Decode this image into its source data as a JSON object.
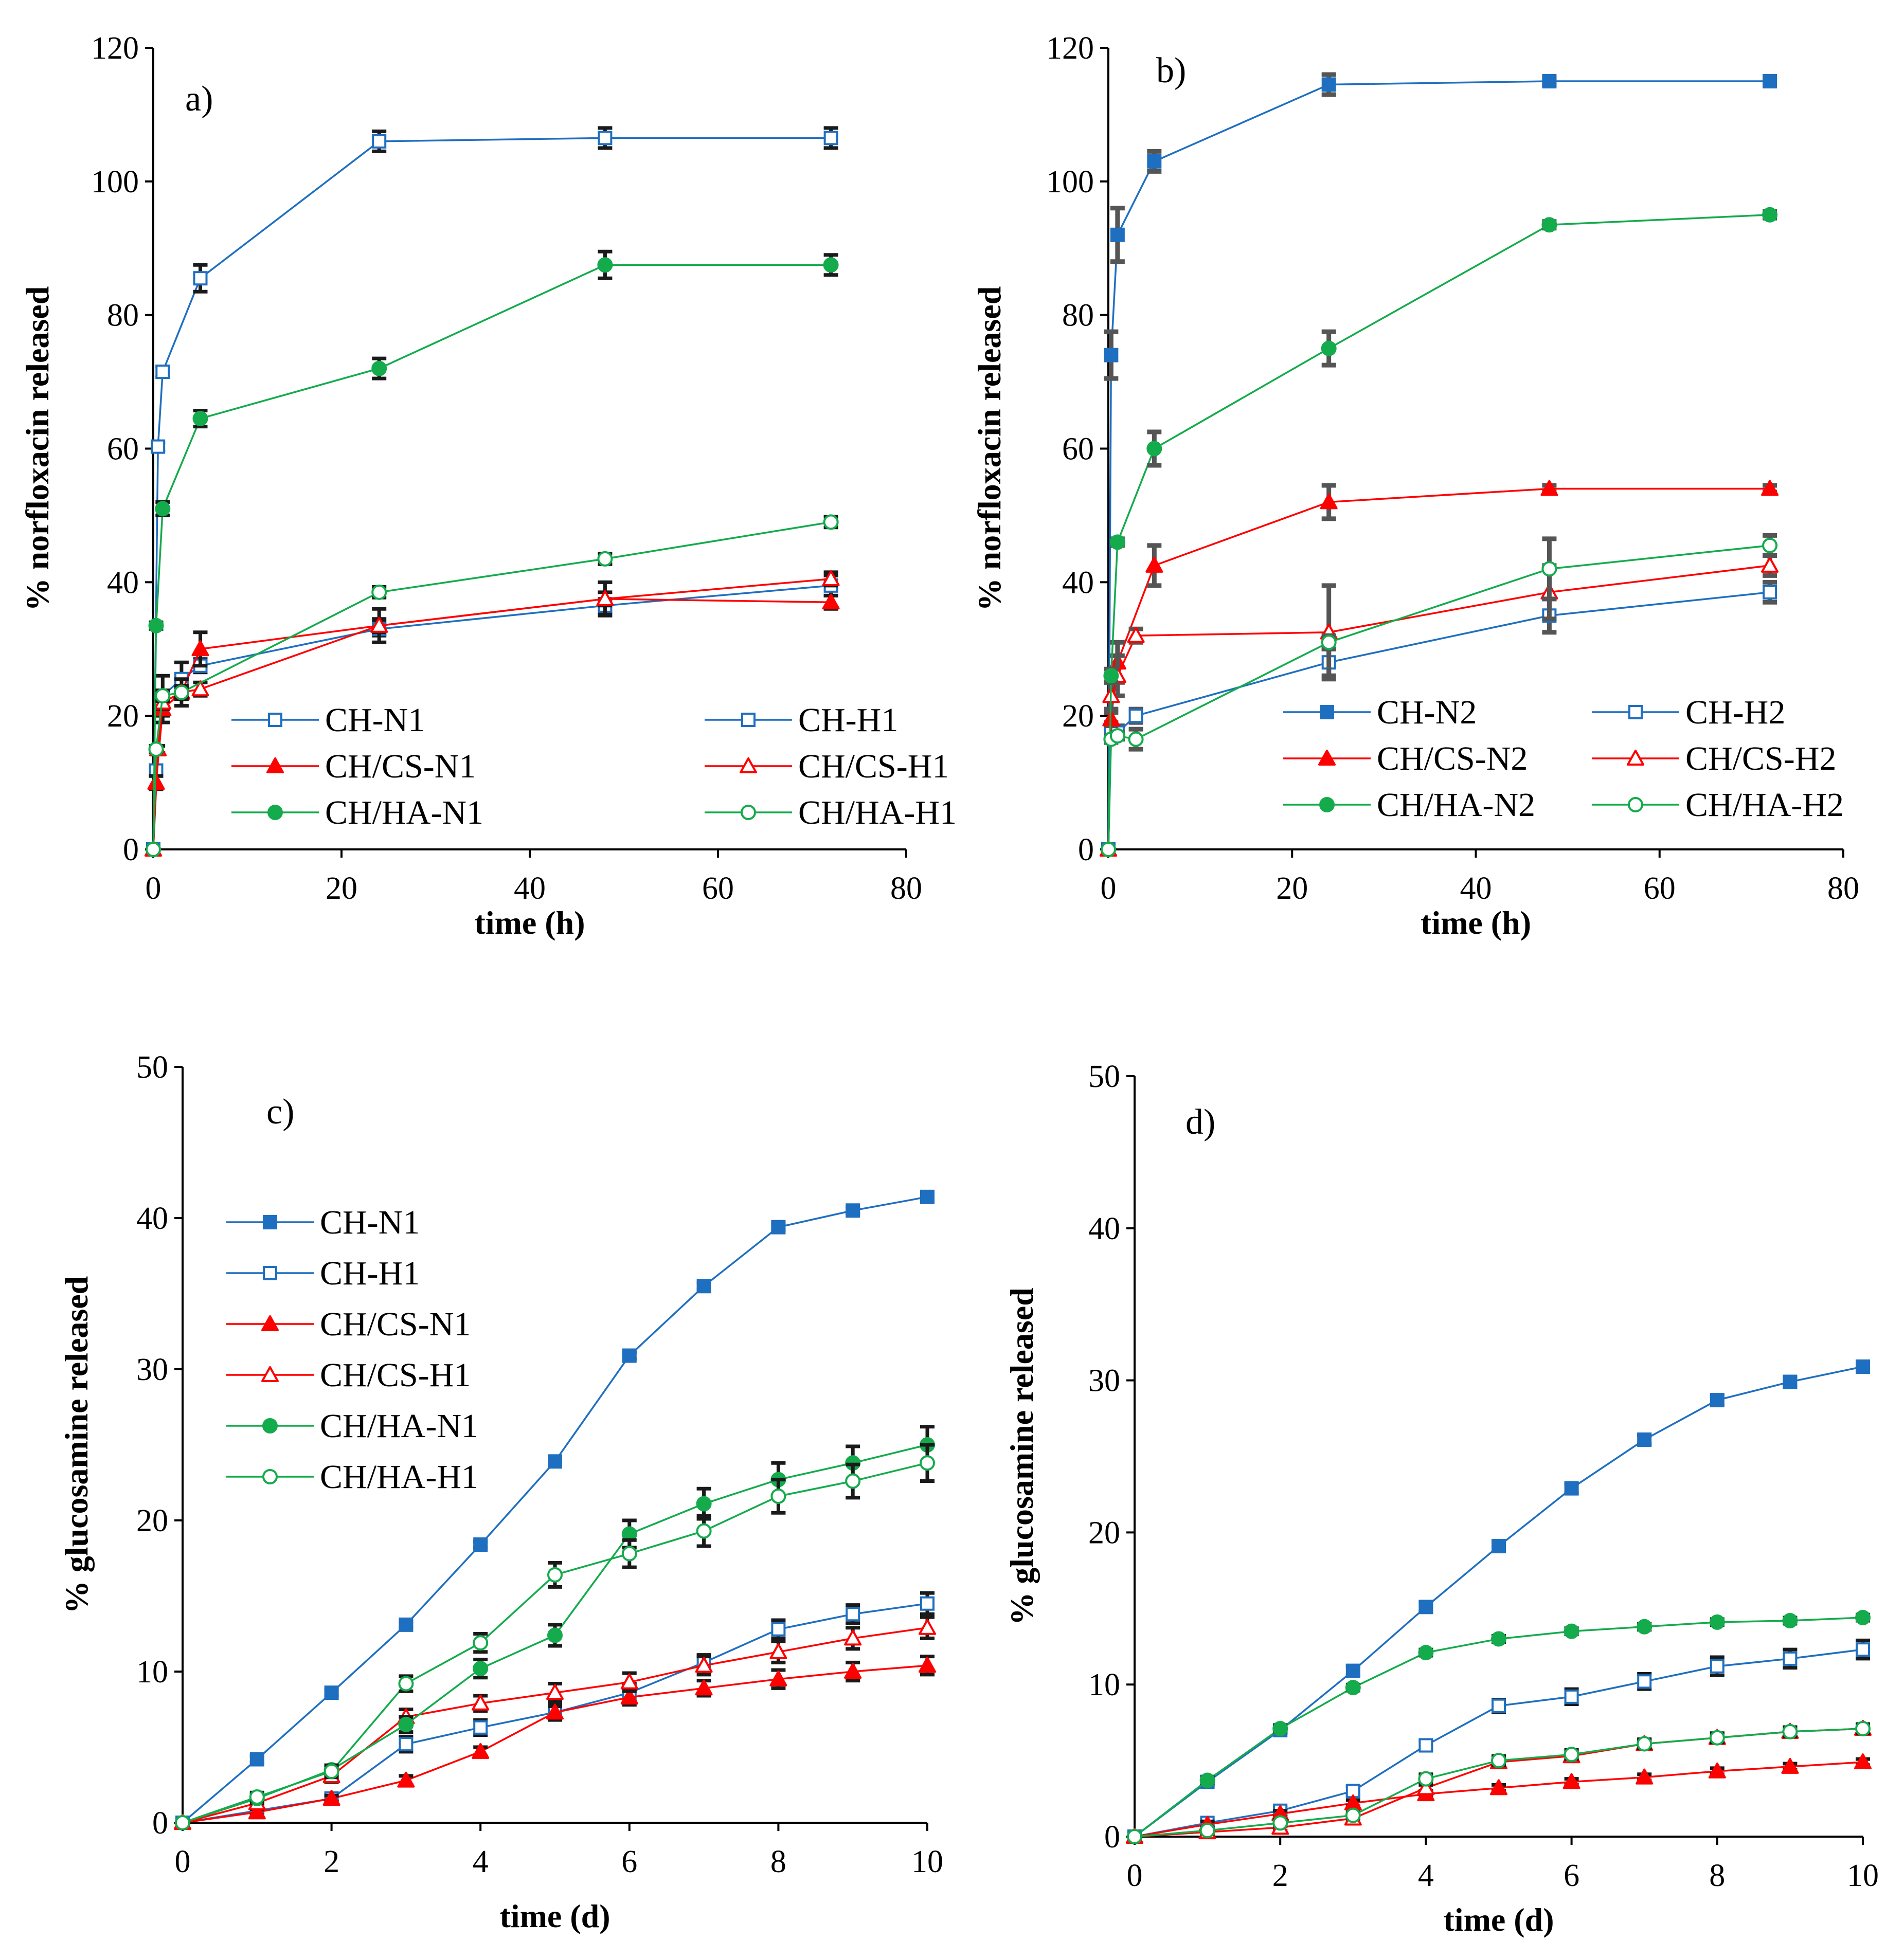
{
  "figure": {
    "colors": {
      "blue": "#1f6fc0",
      "red": "#ff0000",
      "green": "#14ab4c"
    }
  },
  "chart_data": [
    {
      "id": "a",
      "panel_label": "a)",
      "type": "line",
      "xlabel": "time (h)",
      "ylabel": "%  norfloxacin released",
      "xlim": [
        0,
        80
      ],
      "ylim": [
        0,
        120
      ],
      "xticks": [
        0,
        20,
        40,
        60,
        80
      ],
      "yticks": [
        0,
        20,
        40,
        60,
        80,
        100,
        120
      ],
      "legend_position": "bottom-center",
      "legend_columns": 2,
      "series": [
        {
          "name": "CH-N1",
          "color": "#1f6fc0",
          "marker": "square",
          "fill": false,
          "x": [
            0,
            0.5,
            1,
            5,
            24,
            48,
            72
          ],
          "y": [
            0,
            60.3,
            71.5,
            85.5,
            106,
            106.5,
            106.5
          ],
          "err": [
            0,
            0.6,
            0.8,
            2,
            1.5,
            1.5,
            1.5
          ]
        },
        {
          "name": "CH-H1",
          "color": "#1f6fc0",
          "marker": "square",
          "fill": false,
          "x": [
            0,
            0.3,
            1,
            3,
            5,
            24,
            48,
            72
          ],
          "y": [
            0,
            11.8,
            23,
            25.5,
            27.5,
            33,
            36.5,
            39.5
          ],
          "err": [
            0,
            0.8,
            3,
            2.5,
            1,
            1,
            1,
            1.5
          ]
        },
        {
          "name": "CH/CS-N1",
          "color": "#ff0000",
          "marker": "triangle",
          "fill": true,
          "x": [
            0,
            0.3,
            1,
            3,
            5,
            24,
            48,
            72
          ],
          "y": [
            0,
            10,
            21,
            23.5,
            30,
            33.5,
            37.5,
            37
          ],
          "err": [
            0,
            1,
            2,
            2,
            2.5,
            2.5,
            2.5,
            1
          ]
        },
        {
          "name": "CH/CS-H1",
          "color": "#ff0000",
          "marker": "triangle",
          "fill": false,
          "x": [
            0,
            0.5,
            1,
            3,
            5,
            24,
            48,
            72
          ],
          "y": [
            0,
            15,
            22,
            23.5,
            24,
            33.5,
            37.5,
            40.5
          ],
          "err": [
            0,
            0.5,
            1,
            1,
            1,
            1,
            1,
            1
          ]
        },
        {
          "name": "CH/HA-N1",
          "color": "#14ab4c",
          "marker": "circle",
          "fill": true,
          "x": [
            0,
            0.3,
            1,
            5,
            24,
            48,
            72
          ],
          "y": [
            0,
            33.5,
            51,
            64.5,
            72,
            87.5,
            87.5
          ],
          "err": [
            0,
            0.5,
            1,
            1.2,
            1.5,
            2,
            1.5
          ]
        },
        {
          "name": "CH/HA-H1",
          "color": "#14ab4c",
          "marker": "circle",
          "fill": false,
          "x": [
            0,
            0.3,
            1,
            3,
            24,
            48,
            72
          ],
          "y": [
            0,
            15,
            23,
            23.5,
            38.5,
            43.5,
            49
          ],
          "err": [
            0,
            0.5,
            0.8,
            0.8,
            0.8,
            0.8,
            0.8
          ]
        }
      ]
    },
    {
      "id": "b",
      "panel_label": "b)",
      "type": "line",
      "xlabel": "time (h)",
      "ylabel": "% norfloxacin released",
      "xlim": [
        0,
        80
      ],
      "ylim": [
        0,
        120
      ],
      "xticks": [
        0,
        20,
        40,
        60,
        80
      ],
      "yticks": [
        0,
        20,
        40,
        60,
        80,
        100,
        120
      ],
      "legend_position": "bottom-center",
      "legend_columns": 2,
      "series": [
        {
          "name": "CH-N2",
          "color": "#1f6fc0",
          "marker": "square",
          "fill": true,
          "x": [
            0,
            0.3,
            1,
            5,
            24,
            48,
            72
          ],
          "y": [
            0,
            74,
            92,
            103,
            114.5,
            115,
            115
          ],
          "err": [
            0,
            3.5,
            4,
            1.5,
            1.5,
            0.5,
            0.5
          ]
        },
        {
          "name": "CH-H2",
          "color": "#1f6fc0",
          "marker": "square",
          "fill": false,
          "x": [
            0,
            0.3,
            1,
            3,
            24,
            48,
            72
          ],
          "y": [
            0,
            18,
            17.5,
            20,
            28,
            35,
            38.5
          ],
          "err": [
            0,
            1,
            1,
            1,
            2,
            2.5,
            1.5
          ]
        },
        {
          "name": "CH/CS-N2",
          "color": "#ff0000",
          "marker": "triangle",
          "fill": true,
          "x": [
            0,
            0.3,
            1,
            5,
            24,
            48,
            72
          ],
          "y": [
            0,
            19.5,
            28,
            42.5,
            52,
            54,
            54
          ],
          "err": [
            0,
            1,
            3,
            3,
            2.5,
            0.5,
            0.5
          ]
        },
        {
          "name": "CH/CS-H2",
          "color": "#ff0000",
          "marker": "triangle",
          "fill": false,
          "x": [
            0,
            0.3,
            1,
            3,
            24,
            48,
            72
          ],
          "y": [
            0,
            23,
            26,
            32,
            32.5,
            38.5,
            42.5
          ],
          "err": [
            0,
            2,
            3,
            1,
            7,
            4,
            1.5
          ]
        },
        {
          "name": "CH/HA-N2",
          "color": "#14ab4c",
          "marker": "circle",
          "fill": true,
          "x": [
            0,
            0.3,
            1,
            5,
            24,
            48,
            72
          ],
          "y": [
            0,
            26,
            46,
            60,
            75,
            93.5,
            95
          ],
          "err": [
            0,
            1,
            0.5,
            2.5,
            2.5,
            0.5,
            0.5
          ]
        },
        {
          "name": "CH/HA-H2",
          "color": "#14ab4c",
          "marker": "circle",
          "fill": false,
          "x": [
            0,
            0.3,
            1,
            3,
            24,
            48,
            72
          ],
          "y": [
            0,
            16.5,
            17,
            16.5,
            31,
            42,
            45.5
          ],
          "err": [
            0,
            0.5,
            0.5,
            1.5,
            1,
            4.5,
            1.5
          ]
        }
      ]
    },
    {
      "id": "c",
      "panel_label": "c)",
      "type": "line",
      "xlabel": "time (d)",
      "ylabel": "% glucosamine released",
      "xlim": [
        0,
        10
      ],
      "ylim": [
        0,
        50
      ],
      "xticks": [
        0,
        2,
        4,
        6,
        8,
        10
      ],
      "yticks": [
        0,
        10,
        20,
        30,
        40,
        50
      ],
      "legend_position": "upper-left",
      "legend_columns": 1,
      "series": [
        {
          "name": "CH-N1",
          "color": "#1f6fc0",
          "marker": "square",
          "fill": true,
          "x": [
            0,
            1,
            2,
            3,
            4,
            5,
            6,
            7,
            8,
            9,
            10
          ],
          "y": [
            0,
            4.2,
            8.6,
            13.1,
            18.4,
            23.9,
            30.9,
            35.5,
            39.4,
            40.5,
            41.4
          ],
          "err": [
            0,
            0.2,
            0.2,
            0.2,
            0.2,
            0.2,
            0.2,
            0.2,
            0.2,
            0.2,
            0.2
          ]
        },
        {
          "name": "CH-H1",
          "color": "#1f6fc0",
          "marker": "square",
          "fill": false,
          "x": [
            0,
            1,
            2,
            3,
            4,
            5,
            6,
            7,
            8,
            9,
            10
          ],
          "y": [
            0,
            0.8,
            1.6,
            5.2,
            6.3,
            7.3,
            8.6,
            10.6,
            12.8,
            13.8,
            14.5
          ],
          "err": [
            0,
            0.2,
            0.2,
            0.5,
            0.5,
            0.5,
            0.6,
            0.5,
            0.6,
            0.6,
            0.7
          ]
        },
        {
          "name": "CH/CS-N1",
          "color": "#ff0000",
          "marker": "triangle",
          "fill": true,
          "x": [
            0,
            1,
            2,
            3,
            4,
            5,
            6,
            7,
            8,
            9,
            10
          ],
          "y": [
            0,
            0.7,
            1.6,
            2.8,
            4.7,
            7.3,
            8.3,
            8.9,
            9.5,
            10,
            10.4
          ],
          "err": [
            0,
            0.2,
            0.2,
            0.3,
            0.3,
            0.4,
            0.5,
            0.5,
            0.6,
            0.6,
            0.6
          ]
        },
        {
          "name": "CH/CS-H1",
          "color": "#ff0000",
          "marker": "triangle",
          "fill": false,
          "x": [
            0,
            1,
            2,
            3,
            4,
            5,
            6,
            7,
            8,
            9,
            10
          ],
          "y": [
            0,
            1.3,
            3.1,
            7,
            7.9,
            8.6,
            9.3,
            10.4,
            11.3,
            12.2,
            12.9
          ],
          "err": [
            0,
            0.3,
            0.4,
            0.5,
            0.5,
            0.6,
            0.6,
            0.6,
            0.7,
            0.7,
            0.7
          ]
        },
        {
          "name": "CH/HA-N1",
          "color": "#14ab4c",
          "marker": "circle",
          "fill": true,
          "x": [
            0,
            1,
            2,
            3,
            4,
            5,
            6,
            7,
            8,
            9,
            10
          ],
          "y": [
            0,
            1.6,
            3.5,
            6.5,
            10.2,
            12.4,
            19.1,
            21.1,
            22.7,
            23.8,
            25
          ],
          "err": [
            0,
            0.3,
            0.3,
            0.5,
            0.6,
            0.7,
            0.9,
            1,
            1.1,
            1.1,
            1.2
          ]
        },
        {
          "name": "CH/HA-H1",
          "color": "#14ab4c",
          "marker": "circle",
          "fill": false,
          "x": [
            0,
            1,
            2,
            3,
            4,
            5,
            6,
            7,
            8,
            9,
            10
          ],
          "y": [
            0,
            1.7,
            3.4,
            9.2,
            11.9,
            16.4,
            17.8,
            19.3,
            21.6,
            22.6,
            23.8
          ],
          "err": [
            0,
            0.3,
            0.4,
            0.5,
            0.6,
            0.8,
            0.9,
            1,
            1.1,
            1.1,
            1.2
          ]
        }
      ]
    },
    {
      "id": "d",
      "panel_label": "d)",
      "type": "line",
      "xlabel": "time (d)",
      "ylabel": "% glucosamine released",
      "xlim": [
        0,
        10
      ],
      "ylim": [
        0,
        50
      ],
      "xticks": [
        0,
        2,
        4,
        6,
        8,
        10
      ],
      "yticks": [
        0,
        10,
        20,
        30,
        40,
        50
      ],
      "series": [
        {
          "name": "CH-N2",
          "color": "#1f6fc0",
          "marker": "square",
          "fill": true,
          "x": [
            0,
            1,
            2,
            3,
            4,
            5,
            6,
            7,
            8,
            9,
            10
          ],
          "y": [
            0,
            3.6,
            7,
            10.9,
            15.1,
            19.1,
            22.9,
            26.1,
            28.7,
            29.9,
            30.9
          ],
          "err": [
            0,
            0.2,
            0.2,
            0.3,
            0.3,
            0.3,
            0.3,
            0.3,
            0.3,
            0.3,
            0.3
          ]
        },
        {
          "name": "CH-H2",
          "color": "#1f6fc0",
          "marker": "square",
          "fill": false,
          "x": [
            0,
            1,
            2,
            3,
            4,
            5,
            6,
            7,
            8,
            9,
            10
          ],
          "y": [
            0,
            0.9,
            1.7,
            3,
            6,
            8.6,
            9.2,
            10.2,
            11.2,
            11.7,
            12.3
          ],
          "err": [
            0,
            0.2,
            0.2,
            0.3,
            0.3,
            0.4,
            0.5,
            0.5,
            0.6,
            0.6,
            0.6
          ]
        },
        {
          "name": "CH/CS-N2",
          "color": "#ff0000",
          "marker": "triangle",
          "fill": true,
          "x": [
            0,
            1,
            2,
            3,
            4,
            5,
            6,
            7,
            8,
            9,
            10
          ],
          "y": [
            0,
            0.8,
            1.5,
            2.2,
            2.8,
            3.2,
            3.6,
            3.9,
            4.3,
            4.6,
            4.9
          ],
          "err": [
            0,
            0.2,
            0.2,
            0.2,
            0.2,
            0.2,
            0.2,
            0.2,
            0.2,
            0.2,
            0.2
          ]
        },
        {
          "name": "CH/CS-H2",
          "color": "#ff0000",
          "marker": "triangle",
          "fill": false,
          "x": [
            0,
            1,
            2,
            3,
            4,
            5,
            6,
            7,
            8,
            9,
            10
          ],
          "y": [
            0,
            0.3,
            0.6,
            1.2,
            3.2,
            4.9,
            5.3,
            6.1,
            6.5,
            6.9,
            7.1
          ],
          "err": [
            0,
            0.2,
            0.2,
            0.2,
            0.2,
            0.3,
            0.3,
            0.3,
            0.3,
            0.3,
            0.3
          ]
        },
        {
          "name": "CH/HA-N2",
          "color": "#14ab4c",
          "marker": "circle",
          "fill": true,
          "x": [
            0,
            1,
            2,
            3,
            4,
            5,
            6,
            7,
            8,
            9,
            10
          ],
          "y": [
            0,
            3.7,
            7.1,
            9.8,
            12.1,
            13,
            13.5,
            13.8,
            14.1,
            14.2,
            14.4
          ],
          "err": [
            0,
            0.2,
            0.2,
            0.2,
            0.2,
            0.2,
            0.2,
            0.2,
            0.2,
            0.2,
            0.2
          ]
        },
        {
          "name": "CH/HA-H2",
          "color": "#14ab4c",
          "marker": "circle",
          "fill": false,
          "x": [
            0,
            1,
            2,
            3,
            4,
            5,
            6,
            7,
            8,
            9,
            10
          ],
          "y": [
            0,
            0.4,
            0.9,
            1.4,
            3.8,
            5,
            5.4,
            6.1,
            6.5,
            6.9,
            7.1
          ],
          "err": [
            0,
            0.2,
            0.2,
            0.2,
            0.3,
            0.3,
            0.3,
            0.3,
            0.3,
            0.3,
            0.3
          ]
        }
      ]
    }
  ]
}
